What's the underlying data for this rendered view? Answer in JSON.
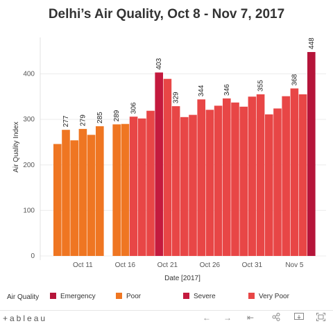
{
  "chart_data": {
    "type": "bar",
    "title": "Delhi’s Air Quality, Oct 8 - Nov 7, 2017",
    "xlabel": "Date [2017]",
    "ylabel": "Air Quality Index",
    "ylim": [
      0,
      480
    ],
    "yticks": [
      0,
      100,
      200,
      300,
      400
    ],
    "grid": true,
    "xtick_labels": [
      {
        "label": "Oct 11",
        "day": 11
      },
      {
        "label": "Oct 16",
        "day": 16
      },
      {
        "label": "Oct 21",
        "day": 21
      },
      {
        "label": "Oct 26",
        "day": 26
      },
      {
        "label": "Oct 31",
        "day": 31
      },
      {
        "label": "Nov 5",
        "day": 36
      }
    ],
    "categories": [
      "Oct 8",
      "Oct 9",
      "Oct 10",
      "Oct 11",
      "Oct 12",
      "Oct 13",
      "Oct 14",
      "Oct 15",
      "Oct 16",
      "Oct 17",
      "Oct 18",
      "Oct 19",
      "Oct 20",
      "Oct 21",
      "Oct 22",
      "Oct 23",
      "Oct 24",
      "Oct 25",
      "Oct 26",
      "Oct 27",
      "Oct 28",
      "Oct 29",
      "Oct 30",
      "Oct 31",
      "Nov 1",
      "Nov 2",
      "Nov 3",
      "Nov 4",
      "Nov 5",
      "Nov 6",
      "Nov 7"
    ],
    "values": [
      246,
      277,
      254,
      279,
      266,
      285,
      null,
      289,
      290,
      306,
      302,
      319,
      403,
      389,
      329,
      305,
      310,
      344,
      321,
      330,
      346,
      337,
      328,
      350,
      355,
      311,
      324,
      351,
      368,
      355,
      448
    ],
    "quality": [
      "Poor",
      "Poor",
      "Poor",
      "Poor",
      "Poor",
      "Poor",
      null,
      "Poor",
      "Poor",
      "Very Poor",
      "Very Poor",
      "Very Poor",
      "Severe",
      "Very Poor",
      "Very Poor",
      "Very Poor",
      "Very Poor",
      "Very Poor",
      "Very Poor",
      "Very Poor",
      "Very Poor",
      "Very Poor",
      "Very Poor",
      "Very Poor",
      "Very Poor",
      "Very Poor",
      "Very Poor",
      "Very Poor",
      "Very Poor",
      "Very Poor",
      "Emergency"
    ],
    "labeled": [
      false,
      true,
      false,
      true,
      false,
      true,
      false,
      true,
      false,
      true,
      false,
      false,
      true,
      false,
      true,
      false,
      false,
      true,
      false,
      false,
      true,
      false,
      false,
      false,
      true,
      false,
      false,
      false,
      true,
      false,
      true
    ],
    "legend": {
      "title": "Air Quality",
      "placement": "bottom",
      "items": [
        {
          "name": "Emergency",
          "color": "#b5153a"
        },
        {
          "name": "Poor",
          "color": "#ef7622"
        },
        {
          "name": "Severe",
          "color": "#c41a3e"
        },
        {
          "name": "Very Poor",
          "color": "#e84646"
        }
      ]
    }
  },
  "footer": {
    "brand": "+ableau",
    "icons": [
      "back-arrow-icon",
      "forward-arrow-icon",
      "first-page-icon",
      "share-icon",
      "download-icon",
      "fullscreen-icon"
    ]
  }
}
